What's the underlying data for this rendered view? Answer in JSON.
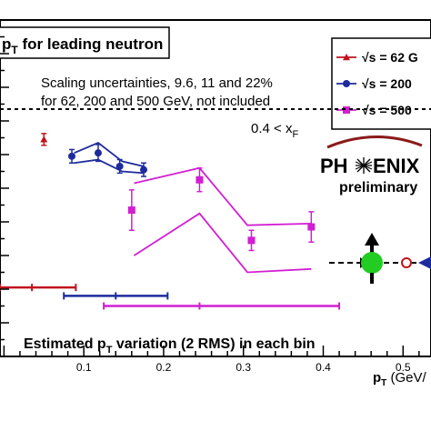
{
  "chart_data": {
    "type": "scatter",
    "title": "p_T for leading neutron",
    "title_parts": {
      "before": "p",
      "sub": "T",
      "after": " for leading neutron"
    },
    "xlabel": "p_T (GeV/c)",
    "xlabel_parts": {
      "main": "p",
      "sub": "T",
      "rest": " (GeV/"
    },
    "xlim": [
      -0.005,
      0.535
    ],
    "ylim": [
      -1.0,
      1.0
    ],
    "x_ticks": [
      0.1,
      0.2,
      0.3,
      0.4,
      0.5
    ],
    "x_tick_labels": [
      "0.1",
      "0.2",
      "0.3",
      "0.4",
      "0.5"
    ],
    "zero_line_y": 0.47,
    "grid": false,
    "legend_position": "top-right",
    "legend": [
      {
        "label": "√s = 62 G",
        "color": "#c0141c",
        "marker": "triangle"
      },
      {
        "label": "√s = 200",
        "color": "#1e2b9c",
        "marker": "circle"
      },
      {
        "label": "√s = 500",
        "color": "#d21fd2",
        "marker": "square"
      }
    ],
    "annotations": {
      "scaling_line1": "Scaling uncertainties, 9.6, 11 and 22%",
      "scaling_line2": "for 62, 200 and 500 GeV, not included",
      "xf_cut": {
        "main": "0.4 < x",
        "sub": "F"
      },
      "logo_text": {
        "left": "PH",
        "right": "ENIX"
      },
      "preliminary": "preliminary",
      "rms_note": {
        "before": "Estimated p",
        "sub": "T",
        "after": " variation (2 RMS) in each bin"
      }
    },
    "series": [
      {
        "name": "√s = 62 G",
        "color": "#c0141c",
        "marker": "triangle",
        "points": [
          {
            "x": 0.05,
            "y": 0.29,
            "err": 0.035
          }
        ],
        "band": null
      },
      {
        "name": "√s = 200",
        "color": "#1e2b9c",
        "marker": "circle",
        "points": [
          {
            "x": 0.085,
            "y": 0.19,
            "err": 0.04
          },
          {
            "x": 0.118,
            "y": 0.21,
            "err": 0.05
          },
          {
            "x": 0.145,
            "y": 0.13,
            "err": 0.04
          },
          {
            "x": 0.175,
            "y": 0.11,
            "err": 0.04
          }
        ],
        "band": {
          "x": [
            0.088,
            0.118,
            0.148,
            0.175
          ],
          "upper": [
            0.21,
            0.27,
            0.16,
            0.13
          ],
          "lower": [
            0.15,
            0.17,
            0.1,
            0.09
          ]
        }
      },
      {
        "name": "√s = 500",
        "color": "#d21fd2",
        "marker": "square",
        "points": [
          {
            "x": 0.16,
            "y": -0.13,
            "err": 0.12
          },
          {
            "x": 0.245,
            "y": 0.05,
            "err": 0.07
          },
          {
            "x": 0.31,
            "y": -0.31,
            "err": 0.06
          },
          {
            "x": 0.385,
            "y": -0.23,
            "err": 0.09
          }
        ],
        "band": {
          "x": [
            0.163,
            0.245,
            0.305,
            0.385
          ],
          "upper": [
            0.03,
            0.12,
            -0.22,
            -0.21
          ],
          "lower": [
            -0.4,
            -0.15,
            -0.5,
            -0.48
          ]
        }
      }
    ],
    "rms_bars": [
      {
        "series": "√s = 62 G",
        "x_center": 0.035,
        "x_low": -0.005,
        "x_high": 0.09,
        "y": -0.59
      },
      {
        "series": "√s = 200",
        "x_center": 0.14,
        "x_low": 0.075,
        "x_high": 0.205,
        "y": -0.64
      },
      {
        "series": "√s = 500",
        "x_center": 0.245,
        "x_low": 0.125,
        "x_high": 0.42,
        "y": -0.7
      }
    ]
  }
}
